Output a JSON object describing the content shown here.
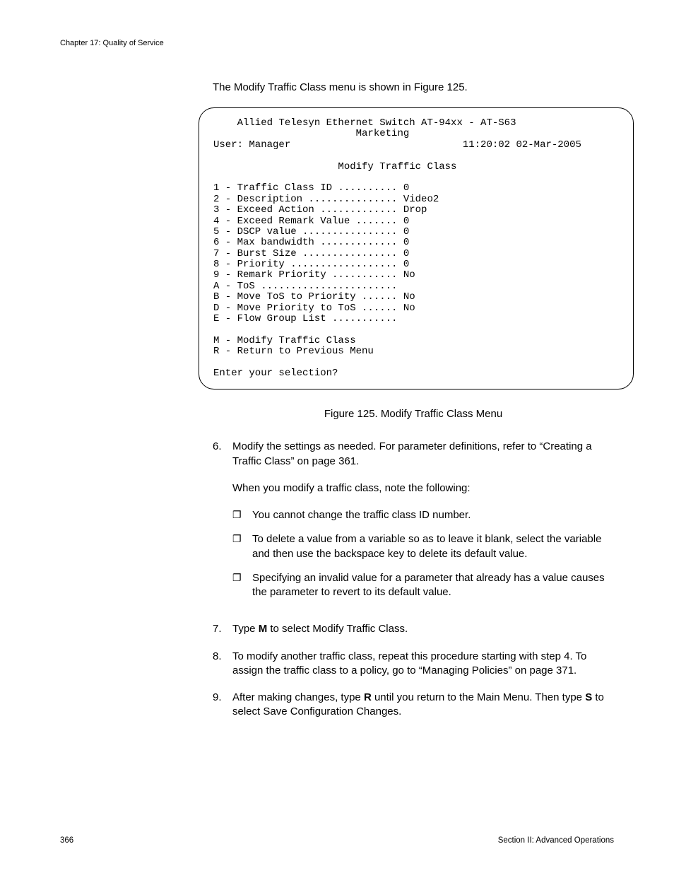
{
  "header": {
    "chapter": "Chapter 17: Quality of Service"
  },
  "intro": "The Modify Traffic Class menu is shown in Figure 125.",
  "terminal": {
    "title_line1": "Allied Telesyn Ethernet Switch AT-94xx - AT-S63",
    "title_line2": "Marketing",
    "user_label": "User: Manager",
    "timestamp": "11:20:02 02-Mar-2005",
    "menu_title": "Modify Traffic Class",
    "options": [
      {
        "key": "1",
        "label": "Traffic Class ID",
        "dots": "..........",
        "value": "0"
      },
      {
        "key": "2",
        "label": "Description",
        "dots": "...............",
        "value": "Video2"
      },
      {
        "key": "3",
        "label": "Exceed Action",
        "dots": ".............",
        "value": "Drop"
      },
      {
        "key": "4",
        "label": "Exceed Remark Value",
        "dots": ".......",
        "value": "0"
      },
      {
        "key": "5",
        "label": "DSCP value",
        "dots": "................",
        "value": "0"
      },
      {
        "key": "6",
        "label": "Max bandwidth",
        "dots": ".............",
        "value": "0"
      },
      {
        "key": "7",
        "label": "Burst Size",
        "dots": "................",
        "value": "0"
      },
      {
        "key": "8",
        "label": "Priority",
        "dots": "..................",
        "value": "0"
      },
      {
        "key": "9",
        "label": "Remark Priority",
        "dots": "...........",
        "value": "No"
      },
      {
        "key": "A",
        "label": "ToS",
        "dots": ".......................",
        "value": ""
      },
      {
        "key": "B",
        "label": "Move ToS to Priority",
        "dots": "......",
        "value": "No"
      },
      {
        "key": "D",
        "label": "Move Priority to ToS",
        "dots": "......",
        "value": "No"
      },
      {
        "key": "E",
        "label": "Flow Group List",
        "dots": "...........",
        "value": ""
      }
    ],
    "actions": [
      {
        "key": "M",
        "label": "Modify Traffic Class"
      },
      {
        "key": "R",
        "label": "Return to Previous Menu"
      }
    ],
    "prompt": "Enter your selection?"
  },
  "figure_caption": "Figure 125. Modify Traffic Class Menu",
  "steps": {
    "s6": {
      "num": "6.",
      "p1a": "Modify the settings as needed. For parameter definitions, refer to “Creating a Traffic Class” on page 361.",
      "p2": "When you modify a traffic class, note the following:",
      "bullets": [
        "You cannot change the traffic class ID number.",
        "To delete a value from a variable so as to leave it blank, select the variable and then use the backspace key to delete its default value.",
        "Specifying an invalid value for a parameter that already has a value causes the parameter to revert to its default value."
      ]
    },
    "s7": {
      "num": "7.",
      "pre": "Type ",
      "bold": "M",
      "post": " to select Modify Traffic Class."
    },
    "s8": {
      "num": "8.",
      "text": "To modify another traffic class, repeat this procedure starting with step 4. To assign the traffic class to a policy, go to “Managing Policies” on page 371."
    },
    "s9": {
      "num": "9.",
      "pre": "After making changes, type ",
      "bold1": "R",
      "mid": " until you return to the Main Menu. Then type ",
      "bold2": "S",
      "post": " to select Save Configuration Changes."
    }
  },
  "footer": {
    "page_num": "366",
    "section": "Section II: Advanced Operations"
  }
}
